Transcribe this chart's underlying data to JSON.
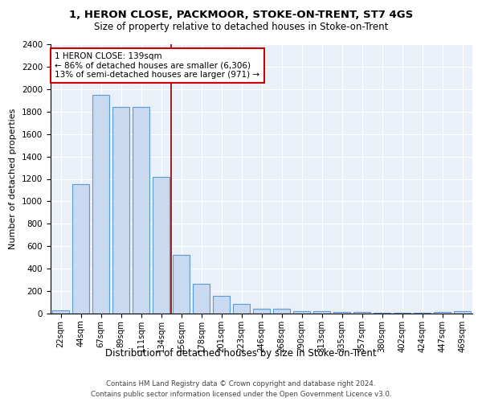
{
  "title1": "1, HERON CLOSE, PACKMOOR, STOKE-ON-TRENT, ST7 4GS",
  "title2": "Size of property relative to detached houses in Stoke-on-Trent",
  "xlabel": "Distribution of detached houses by size in Stoke-on-Trent",
  "ylabel": "Number of detached properties",
  "categories": [
    "22sqm",
    "44sqm",
    "67sqm",
    "89sqm",
    "111sqm",
    "134sqm",
    "156sqm",
    "178sqm",
    "201sqm",
    "223sqm",
    "246sqm",
    "268sqm",
    "290sqm",
    "313sqm",
    "335sqm",
    "357sqm",
    "380sqm",
    "402sqm",
    "424sqm",
    "447sqm",
    "469sqm"
  ],
  "bar_heights": [
    30,
    1150,
    1950,
    1840,
    1840,
    1220,
    520,
    265,
    155,
    85,
    45,
    45,
    20,
    25,
    15,
    15,
    10,
    10,
    5,
    15,
    20
  ],
  "bar_color": "#c9d9f0",
  "bar_edge_color": "#5b9bd5",
  "vline_x": 5.5,
  "vline_color": "#8b0000",
  "annotation_text": "1 HERON CLOSE: 139sqm\n← 86% of detached houses are smaller (6,306)\n13% of semi-detached houses are larger (971) →",
  "annotation_box_color": "white",
  "annotation_box_edge_color": "#cc0000",
  "ylim": [
    0,
    2400
  ],
  "yticks": [
    0,
    200,
    400,
    600,
    800,
    1000,
    1200,
    1400,
    1600,
    1800,
    2000,
    2200,
    2400
  ],
  "footnote1": "Contains HM Land Registry data © Crown copyright and database right 2024.",
  "footnote2": "Contains public sector information licensed under the Open Government Licence v3.0.",
  "plot_bg_color": "#eaf0f8"
}
